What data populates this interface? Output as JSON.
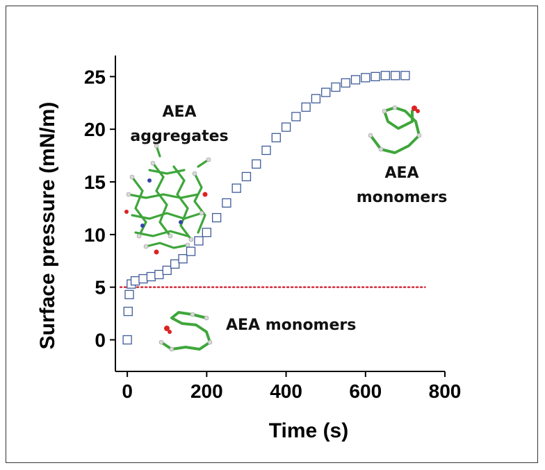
{
  "chart_data": {
    "type": "scatter",
    "xlabel": "Time (s)",
    "ylabel": "Surface pressure (mN/m)",
    "xlim": [
      -30,
      800
    ],
    "ylim": [
      -3,
      27
    ],
    "xticks": [
      0,
      200,
      400,
      600,
      800
    ],
    "yticks": [
      0,
      5,
      10,
      15,
      20,
      25
    ],
    "grid": false,
    "marker": "open-square",
    "marker_color": "#3d5a98",
    "series": [
      {
        "x": [
          0,
          2,
          5,
          10,
          20,
          40,
          60,
          80,
          100,
          120,
          140,
          160,
          180,
          200,
          225,
          250,
          275,
          300,
          325,
          350,
          375,
          400,
          425,
          450,
          475,
          500,
          525,
          550,
          575,
          600,
          625,
          650,
          675,
          700
        ],
        "y": [
          0,
          2.7,
          4.3,
          5.3,
          5.6,
          5.8,
          6.0,
          6.2,
          6.6,
          7.2,
          7.7,
          8.4,
          9.4,
          10.2,
          11.6,
          13.0,
          14.4,
          15.5,
          16.7,
          18.0,
          19.2,
          20.2,
          21.2,
          22.1,
          22.9,
          23.5,
          24.0,
          24.4,
          24.7,
          24.9,
          25.0,
          25.1,
          25.1,
          25.1
        ]
      }
    ],
    "reference_line": {
      "y": 5,
      "style": "dotted",
      "color": "#d42a3a"
    },
    "annotations": [
      {
        "text": "AEA"
      },
      {
        "text": "aggregates"
      },
      {
        "text": "AEA"
      },
      {
        "text": "monomers"
      },
      {
        "text": "AEA monomers"
      }
    ]
  }
}
